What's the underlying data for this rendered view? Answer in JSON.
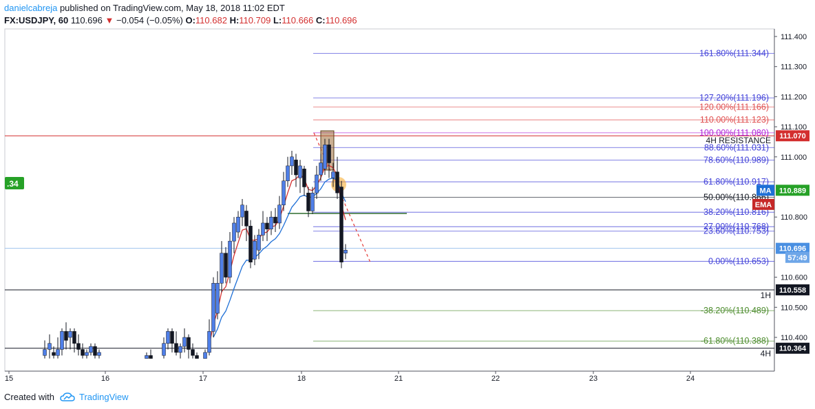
{
  "header": {
    "author": "danielcabreja",
    "published_text": " published on TradingView.com, May 18, 2018 11:02 EDT"
  },
  "symbol_line": {
    "symbol": "FX:USDJPY, 60",
    "last": "110.696",
    "arrow": "▼",
    "change": "−0.054 (−0.05%)",
    "o_label": "O:",
    "o": "110.682",
    "h_label": "H:",
    "h": "110.709",
    "l_label": "L:",
    "l": "110.666",
    "c_label": "C:",
    "c": "110.696"
  },
  "footer": {
    "created_with": "Created with",
    "brand": "TradingView"
  },
  "colors": {
    "up": "#4f7fe8",
    "down": "#131722",
    "ema": "#d32f2f",
    "ma": "#1e6fd6",
    "fib_blue": "#3f3fd8",
    "fib_red": "#e05050",
    "fib_green": "#4a8a2a",
    "resistance": "#d32f2f",
    "badge_green": "#26a127"
  },
  "chart_data": {
    "type": "candlestick",
    "y_ticks": [
      111.4,
      111.3,
      111.2,
      111.1,
      111.0,
      110.8,
      110.6,
      110.5,
      110.4
    ],
    "ylim": [
      110.33,
      111.44
    ],
    "x_ticks": [
      "15",
      "16",
      "17",
      "18",
      "21",
      "22",
      "23",
      "24"
    ],
    "fib_levels": [
      {
        "label": "161.80%(111.344)",
        "price": 111.344,
        "color": "blue"
      },
      {
        "label": "127.20%(111.196)",
        "price": 111.196,
        "color": "blue"
      },
      {
        "label": "120.00%(111.166)",
        "price": 111.166,
        "color": "red"
      },
      {
        "label": "110.00%(111.123)",
        "price": 111.123,
        "color": "red"
      },
      {
        "label": "100.00%(111.080)",
        "price": 111.08,
        "color": "purple"
      },
      {
        "label": "88.60%(111.031)",
        "price": 111.031,
        "color": "blue"
      },
      {
        "label": "78.60%(110.989)",
        "price": 110.989,
        "color": "blue"
      },
      {
        "label": "61.80%(110.917)",
        "price": 110.917,
        "color": "blue"
      },
      {
        "label": "50.00%(110.866)",
        "price": 110.866,
        "color": "black"
      },
      {
        "label": "38.20%(110.816)",
        "price": 110.816,
        "color": "blue"
      },
      {
        "label": "27.00%(110.768)",
        "price": 110.768,
        "color": "blue"
      },
      {
        "label": "23.60%(110.753)",
        "price": 110.753,
        "color": "blue"
      },
      {
        "label": "0.00%(110.653)",
        "price": 110.653,
        "color": "blue"
      },
      {
        "label": "-38.20%(110.489)",
        "price": 110.489,
        "color": "green"
      },
      {
        "label": "-61.80%(110.388)",
        "price": 110.388,
        "color": "green"
      }
    ],
    "horizontal_levels": [
      {
        "label": "4H RESISTANCE",
        "price": 111.07,
        "badge": "111.070",
        "color": "red"
      },
      {
        "label": "1H",
        "price": 110.558,
        "badge": "110.558",
        "color": "black"
      },
      {
        "label": "4H",
        "price": 110.364,
        "badge": "110.364",
        "color": "black"
      }
    ],
    "price_badges": [
      {
        "label": "110.889",
        "tag": "MA",
        "price": 110.889
      },
      {
        "label": "EMA",
        "price": 110.842
      },
      {
        "label": "110.696",
        "price": 110.696
      },
      {
        "label": "57:49",
        "price": 110.666
      }
    ],
    "left_badge": ".34",
    "candles": [
      {
        "x": 65,
        "o": 110.34,
        "c": 110.36,
        "h": 110.39,
        "l": 110.33
      },
      {
        "x": 72,
        "o": 110.36,
        "c": 110.38,
        "h": 110.41,
        "l": 110.33
      },
      {
        "x": 78,
        "o": 110.35,
        "c": 110.34,
        "h": 110.37,
        "l": 110.33
      },
      {
        "x": 84,
        "o": 110.34,
        "c": 110.36,
        "h": 110.4,
        "l": 110.33
      },
      {
        "x": 90,
        "o": 110.36,
        "c": 110.42,
        "h": 110.43,
        "l": 110.34
      },
      {
        "x": 96,
        "o": 110.42,
        "c": 110.39,
        "h": 110.45,
        "l": 110.36
      },
      {
        "x": 102,
        "o": 110.4,
        "c": 110.42,
        "h": 110.43,
        "l": 110.36
      },
      {
        "x": 108,
        "o": 110.42,
        "c": 110.38,
        "h": 110.43,
        "l": 110.35
      },
      {
        "x": 114,
        "o": 110.38,
        "c": 110.36,
        "h": 110.41,
        "l": 110.34
      },
      {
        "x": 120,
        "o": 110.36,
        "c": 110.34,
        "h": 110.38,
        "l": 110.33
      },
      {
        "x": 126,
        "o": 110.34,
        "c": 110.35,
        "h": 110.36,
        "l": 110.33
      },
      {
        "x": 132,
        "o": 110.35,
        "c": 110.37,
        "h": 110.38,
        "l": 110.34
      },
      {
        "x": 138,
        "o": 110.37,
        "c": 110.34,
        "h": 110.38,
        "l": 110.33
      },
      {
        "x": 144,
        "o": 110.34,
        "c": 110.35,
        "h": 110.36,
        "l": 110.33
      },
      {
        "x": 213,
        "o": 110.33,
        "c": 110.34,
        "h": 110.35,
        "l": 110.33
      },
      {
        "x": 219,
        "o": 110.34,
        "c": 110.33,
        "h": 110.36,
        "l": 110.33
      },
      {
        "x": 238,
        "o": 110.34,
        "c": 110.38,
        "h": 110.4,
        "l": 110.33
      },
      {
        "x": 244,
        "o": 110.38,
        "c": 110.42,
        "h": 110.43,
        "l": 110.36
      },
      {
        "x": 250,
        "o": 110.42,
        "c": 110.38,
        "h": 110.43,
        "l": 110.35
      },
      {
        "x": 256,
        "o": 110.38,
        "c": 110.35,
        "h": 110.42,
        "l": 110.34
      },
      {
        "x": 262,
        "o": 110.35,
        "c": 110.37,
        "h": 110.38,
        "l": 110.33
      },
      {
        "x": 268,
        "o": 110.37,
        "c": 110.4,
        "h": 110.43,
        "l": 110.35
      },
      {
        "x": 274,
        "o": 110.4,
        "c": 110.36,
        "h": 110.41,
        "l": 110.33
      },
      {
        "x": 280,
        "o": 110.36,
        "c": 110.34,
        "h": 110.38,
        "l": 110.33
      },
      {
        "x": 286,
        "o": 110.34,
        "c": 110.33,
        "h": 110.35,
        "l": 110.33
      },
      {
        "x": 298,
        "o": 110.33,
        "c": 110.35,
        "h": 110.36,
        "l": 110.33
      },
      {
        "x": 304,
        "o": 110.35,
        "c": 110.42,
        "h": 110.46,
        "l": 110.34
      },
      {
        "x": 310,
        "o": 110.42,
        "c": 110.58,
        "h": 110.6,
        "l": 110.4
      },
      {
        "x": 316,
        "o": 110.48,
        "c": 110.58,
        "h": 110.62,
        "l": 110.46
      },
      {
        "x": 322,
        "o": 110.58,
        "c": 110.68,
        "h": 110.72,
        "l": 110.55
      },
      {
        "x": 328,
        "o": 110.68,
        "c": 110.6,
        "h": 110.7,
        "l": 110.58
      },
      {
        "x": 334,
        "o": 110.6,
        "c": 110.72,
        "h": 110.75,
        "l": 110.58
      },
      {
        "x": 340,
        "o": 110.72,
        "c": 110.78,
        "h": 110.8,
        "l": 110.68
      },
      {
        "x": 346,
        "o": 110.75,
        "c": 110.8,
        "h": 110.82,
        "l": 110.73
      },
      {
        "x": 352,
        "o": 110.8,
        "c": 110.84,
        "h": 110.86,
        "l": 110.77
      },
      {
        "x": 358,
        "o": 110.82,
        "c": 110.77,
        "h": 110.84,
        "l": 110.72
      },
      {
        "x": 364,
        "o": 110.77,
        "c": 110.65,
        "h": 110.79,
        "l": 110.63
      },
      {
        "x": 370,
        "o": 110.66,
        "c": 110.72,
        "h": 110.74,
        "l": 110.64
      },
      {
        "x": 376,
        "o": 110.69,
        "c": 110.74,
        "h": 110.76,
        "l": 110.66
      },
      {
        "x": 382,
        "o": 110.74,
        "c": 110.78,
        "h": 110.82,
        "l": 110.72
      },
      {
        "x": 388,
        "o": 110.78,
        "c": 110.76,
        "h": 110.8,
        "l": 110.72
      },
      {
        "x": 394,
        "o": 110.76,
        "c": 110.8,
        "h": 110.82,
        "l": 110.74
      },
      {
        "x": 400,
        "o": 110.8,
        "c": 110.78,
        "h": 110.83,
        "l": 110.75
      },
      {
        "x": 406,
        "o": 110.78,
        "c": 110.84,
        "h": 110.87,
        "l": 110.76
      },
      {
        "x": 412,
        "o": 110.84,
        "c": 110.92,
        "h": 110.95,
        "l": 110.82
      },
      {
        "x": 418,
        "o": 110.92,
        "c": 110.97,
        "h": 111.0,
        "l": 110.9
      },
      {
        "x": 424,
        "o": 110.97,
        "c": 111.0,
        "h": 111.02,
        "l": 110.94
      },
      {
        "x": 430,
        "o": 110.99,
        "c": 110.94,
        "h": 111.01,
        "l": 110.9
      },
      {
        "x": 436,
        "o": 110.93,
        "c": 110.97,
        "h": 110.99,
        "l": 110.88
      },
      {
        "x": 442,
        "o": 110.96,
        "c": 110.9,
        "h": 110.97,
        "l": 110.87
      },
      {
        "x": 448,
        "o": 110.88,
        "c": 110.82,
        "h": 110.9,
        "l": 110.8
      },
      {
        "x": 454,
        "o": 110.82,
        "c": 110.88,
        "h": 110.9,
        "l": 110.81
      },
      {
        "x": 460,
        "o": 110.88,
        "c": 110.94,
        "h": 110.97,
        "l": 110.86
      },
      {
        "x": 466,
        "o": 110.94,
        "c": 110.98,
        "h": 111.01,
        "l": 110.92
      },
      {
        "x": 472,
        "o": 110.96,
        "c": 111.04,
        "h": 111.06,
        "l": 110.94
      },
      {
        "x": 478,
        "o": 111.04,
        "c": 110.98,
        "h": 111.06,
        "l": 110.93
      },
      {
        "x": 484,
        "o": 110.93,
        "c": 110.95,
        "h": 110.98,
        "l": 110.9
      },
      {
        "x": 490,
        "o": 110.95,
        "c": 110.88,
        "h": 111.0,
        "l": 110.86
      },
      {
        "x": 496,
        "o": 110.9,
        "c": 110.65,
        "h": 110.92,
        "l": 110.63
      },
      {
        "x": 502,
        "o": 110.68,
        "c": 110.69,
        "h": 110.71,
        "l": 110.66
      }
    ]
  }
}
